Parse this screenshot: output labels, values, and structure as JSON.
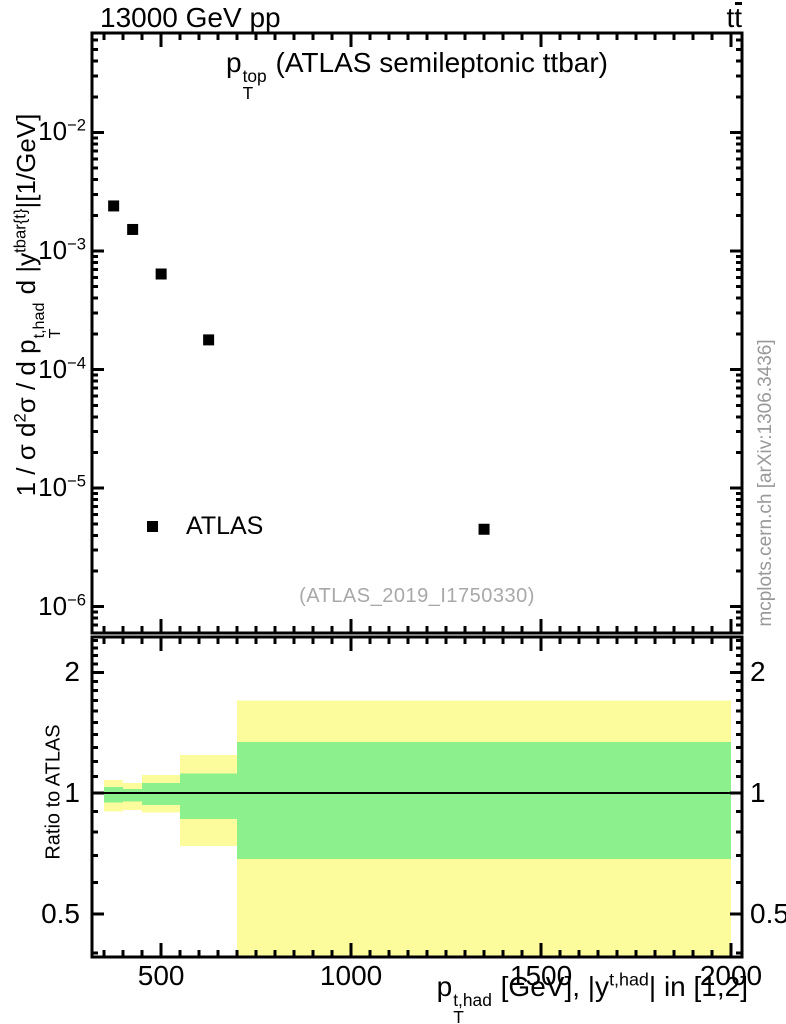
{
  "header": {
    "left": "13000 GeV pp",
    "right_segments": [
      {
        "t": "t"
      },
      {
        "t": "t",
        "bar": true
      }
    ]
  },
  "plot_title": {
    "segments": [
      {
        "t": "p"
      },
      {
        "stack": [
          "top",
          "T"
        ]
      },
      {
        "t": " (ATLAS semileptonic ttbar)"
      }
    ]
  },
  "watermark": "(ATLAS_2019_I1750330)",
  "side_note": "mcplots.cern.ch [arXiv:1306.3436]",
  "legend": {
    "label": "ATLAS",
    "marker": "filled-square"
  },
  "axes": {
    "x": {
      "title_segments": [
        {
          "t": "p"
        },
        {
          "stack": [
            "t,had",
            "T"
          ]
        },
        {
          "t": " [GeV], |y"
        },
        {
          "sup": "t,had"
        },
        {
          "t": "| in [1,2]"
        }
      ],
      "majors": [
        500,
        1000,
        1500,
        2000
      ],
      "minor_start": 350,
      "minor_end": 2000,
      "minor_step": 50
    },
    "y_main": {
      "title_segments": [
        {
          "t": "1 / σ d"
        },
        {
          "sup": "2"
        },
        {
          "t": "σ / d p"
        },
        {
          "stack": [
            "t,had",
            "T"
          ]
        },
        {
          "t": " d |y"
        },
        {
          "sup": "tbar{t}"
        },
        {
          "t": "|[1/GeV]"
        }
      ],
      "decades": [
        -2,
        -3,
        -4,
        -5,
        -6
      ]
    },
    "y_ratio": {
      "majors": [
        2,
        1,
        0.5
      ],
      "minors": [
        0.4,
        0.6,
        0.7,
        0.8,
        0.9,
        1.1,
        1.2,
        1.3,
        1.4,
        1.5,
        1.6,
        1.7,
        1.8,
        1.9,
        2.1,
        2.2,
        2.3,
        2.4
      ]
    }
  },
  "colors": {
    "marker": "#000000",
    "band_outer": "#fcfc9c",
    "band_inner": "#8cf08c",
    "watermark_gray": "#a8a8a8",
    "note_gray": "#999999",
    "frame": "#000000"
  },
  "chart_data": {
    "type": "scatter",
    "title": "p_T^top (ATLAS semileptonic ttbar)",
    "xlabel": "p_T^{t,had} [GeV], |y^{t,had}| in [1,2]",
    "ylabel": "1 / σ d²σ / d p_T^{t,had} d |y^{tbar{t}}| [1/GeV]",
    "xlim": [
      318,
      2029
    ],
    "ylog": true,
    "ylim": [
      6e-07,
      0.069
    ],
    "xticks": [
      500,
      1000,
      1500,
      2000
    ],
    "yticks": [
      0.01,
      0.001,
      0.0001,
      1e-05,
      1e-06
    ],
    "legend_position": "left-middle",
    "grid": false,
    "series": [
      {
        "name": "ATLAS",
        "marker": "filled-square",
        "color": "#000000",
        "bin_edges": [
          350,
          400,
          450,
          550,
          700,
          2000
        ],
        "x": [
          375,
          425,
          500,
          625,
          1350
        ],
        "y": [
          0.0024,
          0.00152,
          0.00064,
          0.000178,
          4.5e-06
        ]
      }
    ],
    "ratio": {
      "ylabel": "Ratio to ATLAS",
      "ylog": true,
      "ylim": [
        0.391,
        2.449
      ],
      "yticks": [
        0.5,
        1,
        2
      ],
      "reference_line": 1,
      "outer_band_color": "#fcfc9c",
      "inner_band_color": "#8cf08c",
      "bands": [
        {
          "range": [
            350,
            400
          ],
          "outer": [
            0.9,
            1.08
          ],
          "inner": [
            0.947,
            1.035
          ]
        },
        {
          "range": [
            400,
            450
          ],
          "outer": [
            0.909,
            1.059
          ],
          "inner": [
            0.953,
            1.025
          ]
        },
        {
          "range": [
            450,
            550
          ],
          "outer": [
            0.895,
            1.111
          ],
          "inner": [
            0.935,
            1.059
          ]
        },
        {
          "range": [
            550,
            700
          ],
          "outer": [
            0.739,
            1.246
          ],
          "inner": [
            0.863,
            1.121
          ]
        },
        {
          "range": [
            700,
            2000
          ],
          "outer": [
            0.35,
            1.7
          ],
          "inner": [
            0.685,
            1.342
          ]
        }
      ]
    }
  }
}
